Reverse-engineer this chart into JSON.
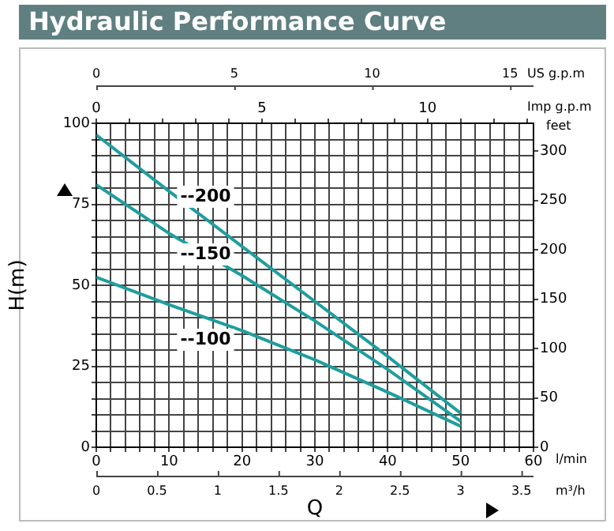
{
  "chart_data": {
    "type": "line",
    "title": "Hydraulic Performance Curve",
    "xlabel": "Q",
    "ylabel": "H(m)",
    "y2label": "feet",
    "x2label": "Imp g.p.m",
    "annotations": [
      "l/min",
      "m³/h",
      "0",
      "0.5",
      "1",
      "1.5",
      "2",
      "2.5",
      "3",
      "3.5",
      "US g.p.m",
      "0",
      "5",
      "10",
      "15"
    ],
    "x": [
      0,
      10,
      20,
      30,
      40,
      50
    ],
    "series": [
      {
        "name": "--200",
        "color": "#1f9e9e",
        "values": [
          96.4,
          79,
          62,
          45,
          28,
          10.5
        ]
      },
      {
        "name": "--150",
        "color": "#1f9e9e",
        "values": [
          81,
          66,
          53,
          39,
          24,
          8
        ]
      },
      {
        "name": "--100",
        "color": "#1f9e9e",
        "values": [
          52.5,
          44,
          36,
          27,
          17,
          6.5
        ]
      }
    ],
    "xlim": [
      0,
      60
    ],
    "xticks": [
      0,
      {
        "value": 2,
        "label": null
      },
      {
        "value": 4,
        "label": null
      },
      {
        "value": 6,
        "label": null
      },
      {
        "value": 8,
        "label": null
      },
      10,
      {
        "value": 12,
        "label": null
      },
      {
        "value": 14,
        "label": null
      },
      {
        "value": 16,
        "label": null
      },
      {
        "value": 18,
        "label": null
      },
      20,
      {
        "value": 22,
        "label": null
      },
      {
        "value": 24,
        "label": null
      },
      {
        "value": 26,
        "label": null
      },
      {
        "value": 28,
        "label": null
      },
      30,
      {
        "value": 32,
        "label": null
      },
      {
        "value": 34,
        "label": null
      },
      {
        "value": 36,
        "label": null
      },
      {
        "value": 38,
        "label": null
      },
      40,
      {
        "value": 42,
        "label": null
      },
      {
        "value": 44,
        "label": null
      },
      {
        "value": 46,
        "label": null
      },
      {
        "value": 48,
        "label": null
      },
      50,
      {
        "value": 52,
        "label": null
      },
      {
        "value": 54,
        "label": null
      },
      {
        "value": 56,
        "label": null
      },
      {
        "value": 58,
        "label": null
      },
      60
    ],
    "ylim": [
      0,
      100
    ],
    "yticks": [
      0,
      {
        "value": 5,
        "label": null
      },
      {
        "value": 10,
        "label": null
      },
      {
        "value": 15,
        "label": null
      },
      {
        "value": 20,
        "label": null
      },
      25,
      {
        "value": 30,
        "label": null
      },
      {
        "value": 35,
        "label": null
      },
      {
        "value": 40,
        "label": null
      },
      {
        "value": 45,
        "label": null
      },
      50,
      {
        "value": 55,
        "label": null
      },
      {
        "value": 60,
        "label": null
      },
      {
        "value": 65,
        "label": null
      },
      {
        "value": 70,
        "label": null
      },
      75,
      {
        "value": 80,
        "label": null
      },
      {
        "value": 85,
        "label": null
      },
      {
        "value": 90,
        "label": null
      },
      {
        "value": 95,
        "label": null
      },
      100
    ],
    "y2lim": [
      0,
      328
    ],
    "y2ticks": [
      0,
      50,
      100,
      150,
      200,
      250,
      300
    ],
    "x2lim": [
      0,
      13.2
    ],
    "x2ticks": [
      0,
      {
        "value": 1,
        "label": null
      },
      {
        "value": 2,
        "label": null
      },
      {
        "value": 3,
        "label": null
      },
      {
        "value": 4,
        "label": null
      },
      5,
      {
        "value": 6,
        "label": null
      },
      {
        "value": 7,
        "label": null
      },
      {
        "value": 8,
        "label": null
      },
      {
        "value": 9,
        "label": null
      },
      10,
      {
        "value": 11,
        "label": null
      },
      {
        "value": 12,
        "label": null
      },
      {
        "value": 13,
        "label": null
      }
    ],
    "grid": true,
    "legend": false,
    "marker": "none",
    "line_style": "solid"
  }
}
